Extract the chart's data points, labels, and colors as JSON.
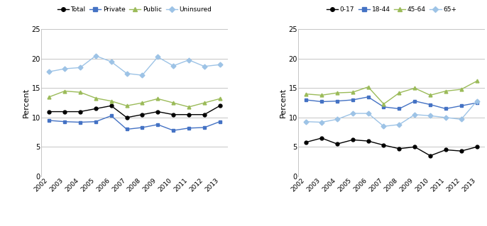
{
  "years": [
    2002,
    2003,
    2004,
    2005,
    2006,
    2007,
    2008,
    2009,
    2010,
    2011,
    2012,
    2013
  ],
  "left": {
    "Total": [
      11.0,
      11.0,
      11.0,
      11.5,
      12.0,
      10.0,
      10.5,
      11.0,
      10.5,
      10.5,
      10.5,
      12.0
    ],
    "Private": [
      9.5,
      9.3,
      9.2,
      9.3,
      10.3,
      8.0,
      8.3,
      8.8,
      7.8,
      8.2,
      8.3,
      9.3
    ],
    "Public": [
      13.5,
      14.5,
      14.3,
      13.3,
      12.8,
      12.0,
      12.5,
      13.2,
      12.5,
      11.8,
      12.5,
      13.2
    ],
    "Uninsured": [
      17.8,
      18.3,
      18.5,
      20.5,
      19.5,
      17.5,
      17.2,
      20.3,
      18.8,
      19.8,
      18.7,
      19.0
    ]
  },
  "right": {
    "0-17": [
      5.8,
      6.5,
      5.5,
      6.2,
      6.0,
      5.3,
      4.7,
      5.0,
      3.5,
      4.5,
      4.3,
      5.0
    ],
    "18-44": [
      13.0,
      12.7,
      12.8,
      13.0,
      13.5,
      11.8,
      11.5,
      12.8,
      12.2,
      11.5,
      12.0,
      12.5
    ],
    "45-64": [
      14.0,
      13.8,
      14.2,
      14.3,
      15.2,
      12.3,
      14.2,
      15.0,
      13.8,
      14.5,
      14.8,
      16.2
    ],
    "65+": [
      9.3,
      9.2,
      9.7,
      10.7,
      10.7,
      8.5,
      8.8,
      10.5,
      10.3,
      10.0,
      9.7,
      12.8
    ]
  },
  "left_series_order": [
    "Total",
    "Private",
    "Public",
    "Uninsured"
  ],
  "right_series_order": [
    "0-17",
    "18-44",
    "45-64",
    "65+"
  ],
  "colors_left": {
    "Total": "#000000",
    "Private": "#4472C4",
    "Public": "#9BBB59",
    "Uninsured": "#9DC3E6"
  },
  "colors_right": {
    "0-17": "#000000",
    "18-44": "#4472C4",
    "45-64": "#9BBB59",
    "65+": "#9DC3E6"
  },
  "markers_left": {
    "Total": "o",
    "Private": "s",
    "Public": "^",
    "Uninsured": "D"
  },
  "markers_right": {
    "0-17": "o",
    "18-44": "s",
    "45-64": "^",
    "65+": "D"
  },
  "ylabel": "Percent",
  "ylim": [
    0,
    25
  ],
  "yticks": [
    0,
    5,
    10,
    15,
    20,
    25
  ],
  "figsize": [
    6.86,
    3.19
  ],
  "dpi": 100
}
